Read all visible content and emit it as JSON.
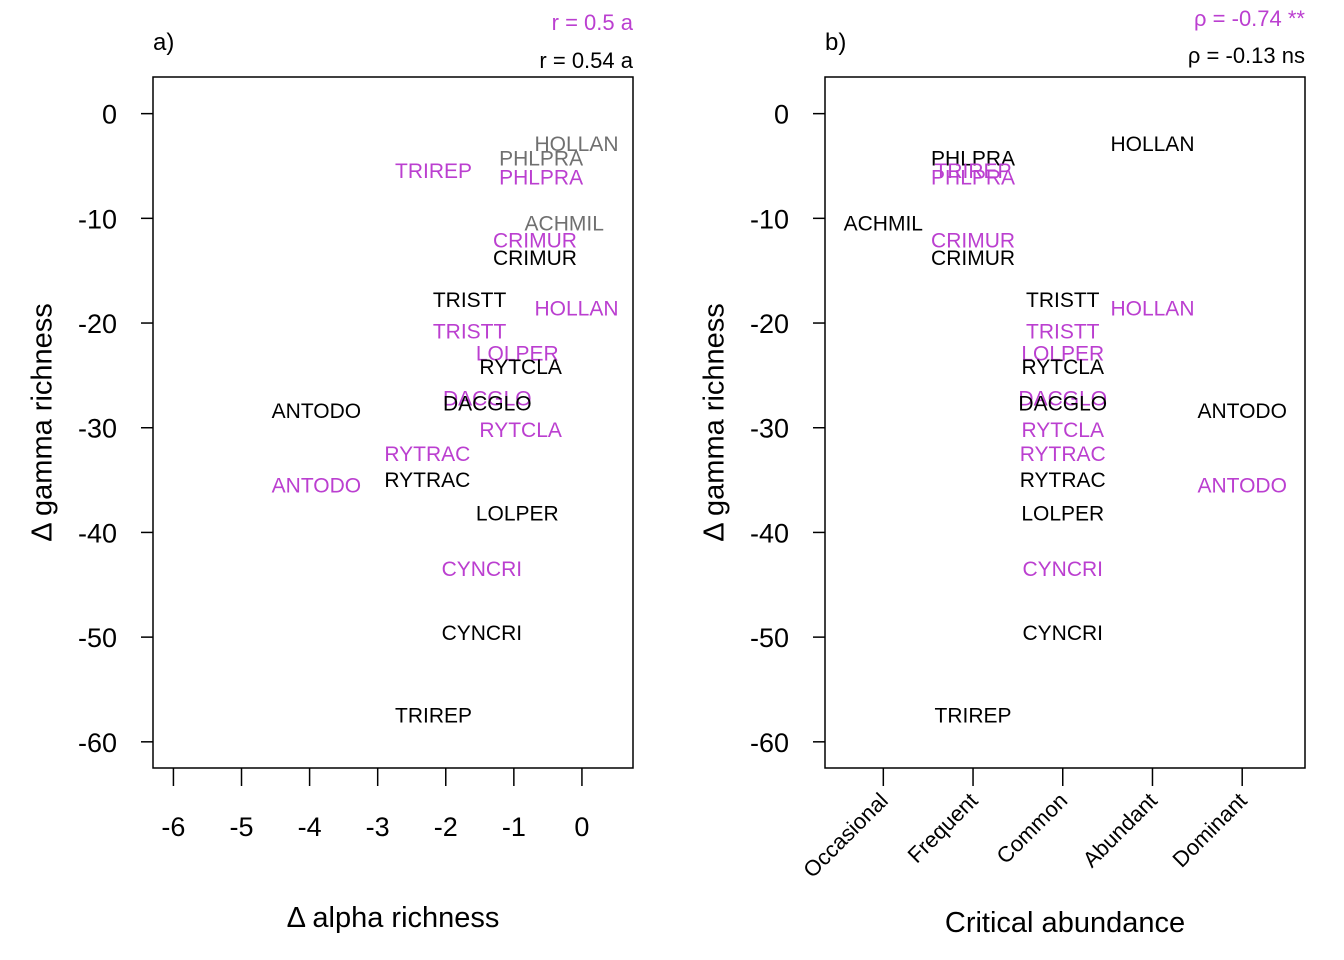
{
  "colors": {
    "black": "#000000",
    "purple": "#BB3FD0",
    "gray": "#707070"
  },
  "chart_data": [
    {
      "type": "scatter",
      "panel": "a)",
      "xlabel": "Δ alpha richness",
      "ylabel": "Δ gamma richness",
      "xlim": [
        -6.3,
        0.75
      ],
      "ylim": [
        -62.5,
        3.5
      ],
      "xticks": [
        -6,
        -5,
        -4,
        -3,
        -2,
        -1,
        0
      ],
      "yticks": [
        0,
        -10,
        -20,
        -30,
        -40,
        -50,
        -60
      ],
      "stats": [
        {
          "text": "r = 0.5 a",
          "color": "purple"
        },
        {
          "text": "r = 0.54 a",
          "color": "black"
        }
      ],
      "points": [
        {
          "label": "HOLLAN",
          "x": -0.08,
          "y": -2.9,
          "color": "gray"
        },
        {
          "label": "PHLPRA",
          "x": -0.6,
          "y": -4.3,
          "color": "gray"
        },
        {
          "label": "ACHMIL",
          "x": -0.26,
          "y": -10.5,
          "color": "gray"
        },
        {
          "label": "TRIREP",
          "x": -2.18,
          "y": -5.5,
          "color": "purple"
        },
        {
          "label": "PHLPRA",
          "x": -0.6,
          "y": -6.1,
          "color": "purple"
        },
        {
          "label": "CRIMUR",
          "x": -0.69,
          "y": -12.1,
          "color": "purple"
        },
        {
          "label": "CRIMUR",
          "x": -0.69,
          "y": -13.8,
          "color": "black"
        },
        {
          "label": "TRISTT",
          "x": -1.65,
          "y": -17.8,
          "color": "black"
        },
        {
          "label": "HOLLAN",
          "x": -0.08,
          "y": -18.6,
          "color": "purple"
        },
        {
          "label": "TRISTT",
          "x": -1.65,
          "y": -20.8,
          "color": "purple"
        },
        {
          "label": "LOLPER",
          "x": -0.95,
          "y": -22.9,
          "color": "purple"
        },
        {
          "label": "RYTCLA",
          "x": -0.9,
          "y": -24.2,
          "color": "black"
        },
        {
          "label": "DACGLO",
          "x": -1.39,
          "y": -27.2,
          "color": "purple"
        },
        {
          "label": "DACGLO",
          "x": -1.39,
          "y": -27.7,
          "color": "black"
        },
        {
          "label": "ANTODO",
          "x": -3.9,
          "y": -28.4,
          "color": "black"
        },
        {
          "label": "RYTCLA",
          "x": -0.9,
          "y": -30.2,
          "color": "purple"
        },
        {
          "label": "RYTRAC",
          "x": -2.27,
          "y": -32.5,
          "color": "purple"
        },
        {
          "label": "ANTODO",
          "x": -3.9,
          "y": -35.5,
          "color": "purple"
        },
        {
          "label": "RYTRAC",
          "x": -2.27,
          "y": -35.0,
          "color": "black"
        },
        {
          "label": "LOLPER",
          "x": -0.95,
          "y": -38.2,
          "color": "black"
        },
        {
          "label": "CYNCRI",
          "x": -1.47,
          "y": -43.5,
          "color": "purple"
        },
        {
          "label": "CYNCRI",
          "x": -1.47,
          "y": -49.6,
          "color": "black"
        },
        {
          "label": "TRIREP",
          "x": -2.18,
          "y": -57.5,
          "color": "black"
        }
      ]
    },
    {
      "type": "scatter",
      "panel": "b)",
      "xlabel": "Critical abundance",
      "ylabel": "Δ gamma richness",
      "categories": [
        "Occasional",
        "Frequent",
        "Common",
        "Abundant",
        "Dominant"
      ],
      "xlim": [
        0.35,
        5.7
      ],
      "ylim": [
        -62.5,
        3.5
      ],
      "yticks": [
        0,
        -10,
        -20,
        -30,
        -40,
        -50,
        -60
      ],
      "stats": [
        {
          "text": "ρ = -0.74 **",
          "color": "purple"
        },
        {
          "text": "ρ = -0.13 ns",
          "color": "black"
        }
      ],
      "points": [
        {
          "label": "HOLLAN",
          "x": 4,
          "y": -2.9,
          "color": "black"
        },
        {
          "label": "PHLPRA",
          "x": 2,
          "y": -4.3,
          "color": "black"
        },
        {
          "label": "TRIREP",
          "x": 2,
          "y": -5.5,
          "color": "purple"
        },
        {
          "label": "PHLPRA",
          "x": 2,
          "y": -6.1,
          "color": "purple"
        },
        {
          "label": "ACHMIL",
          "x": 1,
          "y": -10.5,
          "color": "black"
        },
        {
          "label": "CRIMUR",
          "x": 2,
          "y": -12.1,
          "color": "purple"
        },
        {
          "label": "CRIMUR",
          "x": 2,
          "y": -13.8,
          "color": "black"
        },
        {
          "label": "TRISTT",
          "x": 3,
          "y": -17.8,
          "color": "black"
        },
        {
          "label": "HOLLAN",
          "x": 4,
          "y": -18.6,
          "color": "purple"
        },
        {
          "label": "TRISTT",
          "x": 3,
          "y": -20.8,
          "color": "purple"
        },
        {
          "label": "LOLPER",
          "x": 3,
          "y": -22.9,
          "color": "purple"
        },
        {
          "label": "RYTCLA",
          "x": 3,
          "y": -24.2,
          "color": "black"
        },
        {
          "label": "DACGLO",
          "x": 3,
          "y": -27.2,
          "color": "purple"
        },
        {
          "label": "DACGLO",
          "x": 3,
          "y": -27.7,
          "color": "black"
        },
        {
          "label": "ANTODO",
          "x": 5,
          "y": -28.4,
          "color": "black"
        },
        {
          "label": "RYTCLA",
          "x": 3,
          "y": -30.2,
          "color": "purple"
        },
        {
          "label": "RYTRAC",
          "x": 3,
          "y": -32.5,
          "color": "purple"
        },
        {
          "label": "RYTRAC",
          "x": 3,
          "y": -35.0,
          "color": "black"
        },
        {
          "label": "ANTODO",
          "x": 5,
          "y": -35.5,
          "color": "purple"
        },
        {
          "label": "LOLPER",
          "x": 3,
          "y": -38.2,
          "color": "black"
        },
        {
          "label": "CYNCRI",
          "x": 3,
          "y": -43.5,
          "color": "purple"
        },
        {
          "label": "CYNCRI",
          "x": 3,
          "y": -49.6,
          "color": "black"
        },
        {
          "label": "TRIREP",
          "x": 2,
          "y": -57.5,
          "color": "black"
        }
      ]
    }
  ]
}
